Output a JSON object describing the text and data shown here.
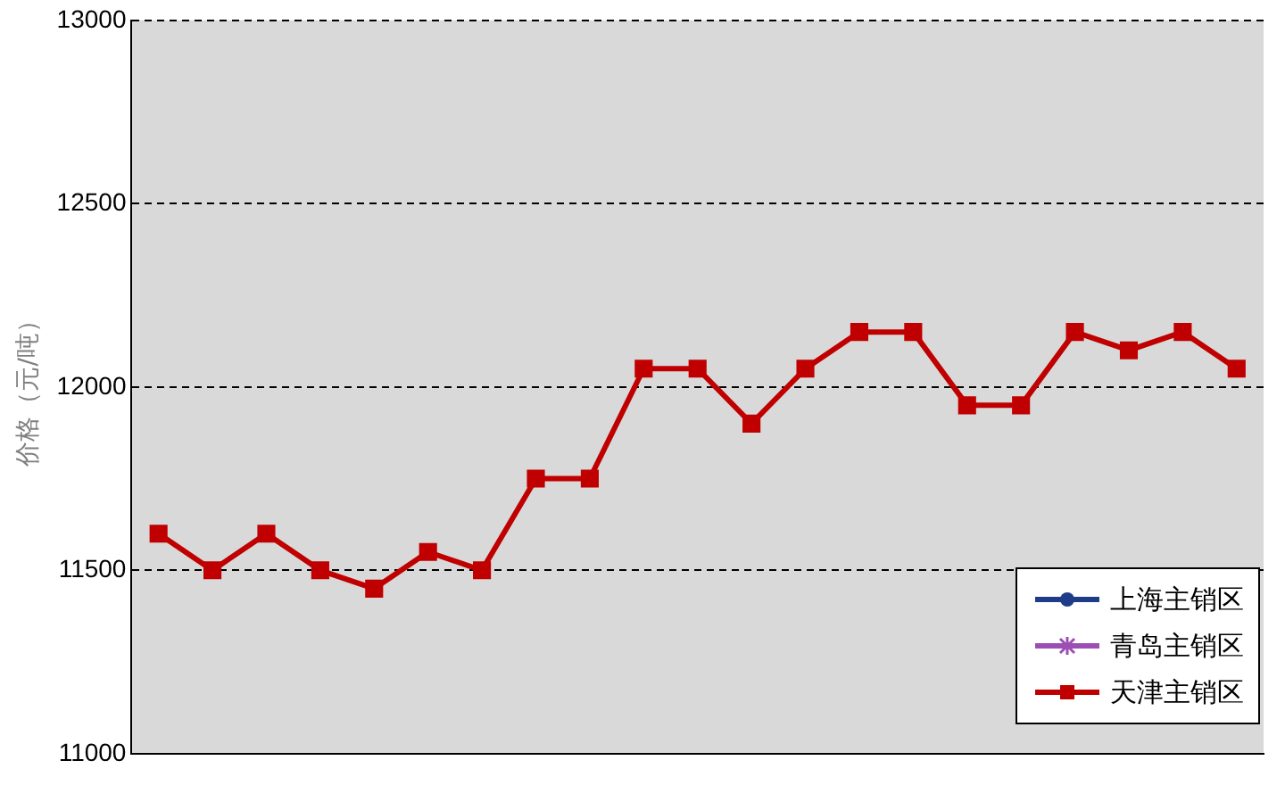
{
  "chart_data": {
    "type": "line",
    "ylabel": "价格（元/吨）",
    "categories": [
      null,
      null,
      null,
      null,
      null,
      null,
      null,
      null,
      null,
      null,
      null,
      null,
      null,
      null,
      null,
      null,
      null,
      null,
      null,
      null,
      null
    ],
    "series": [
      {
        "name": "上海主销区",
        "color": "#1f3c88",
        "marker": "circle",
        "values": [
          null,
          null,
          null,
          null,
          null,
          null,
          null,
          null,
          null,
          null,
          null,
          null,
          null,
          null,
          null,
          null,
          null,
          null,
          null,
          null,
          null
        ]
      },
      {
        "name": "青岛主销区",
        "color": "#9b4fb4",
        "marker": "star",
        "values": [
          null,
          null,
          null,
          null,
          null,
          null,
          null,
          null,
          null,
          null,
          null,
          null,
          null,
          null,
          null,
          null,
          null,
          null,
          null,
          null,
          null
        ]
      },
      {
        "name": "天津主销区",
        "color": "#c00000",
        "marker": "square",
        "values": [
          11600,
          11500,
          11600,
          11500,
          11450,
          11550,
          11500,
          11750,
          11750,
          12050,
          12050,
          11900,
          12050,
          12150,
          12150,
          11950,
          11950,
          12150,
          12100,
          12150,
          12050
        ]
      }
    ],
    "ylim": [
      11000,
      13000
    ],
    "yticks": [
      11000,
      11500,
      12000,
      12500,
      13000
    ],
    "grid": "y",
    "line_style": "solid",
    "legend": "bottom right"
  }
}
